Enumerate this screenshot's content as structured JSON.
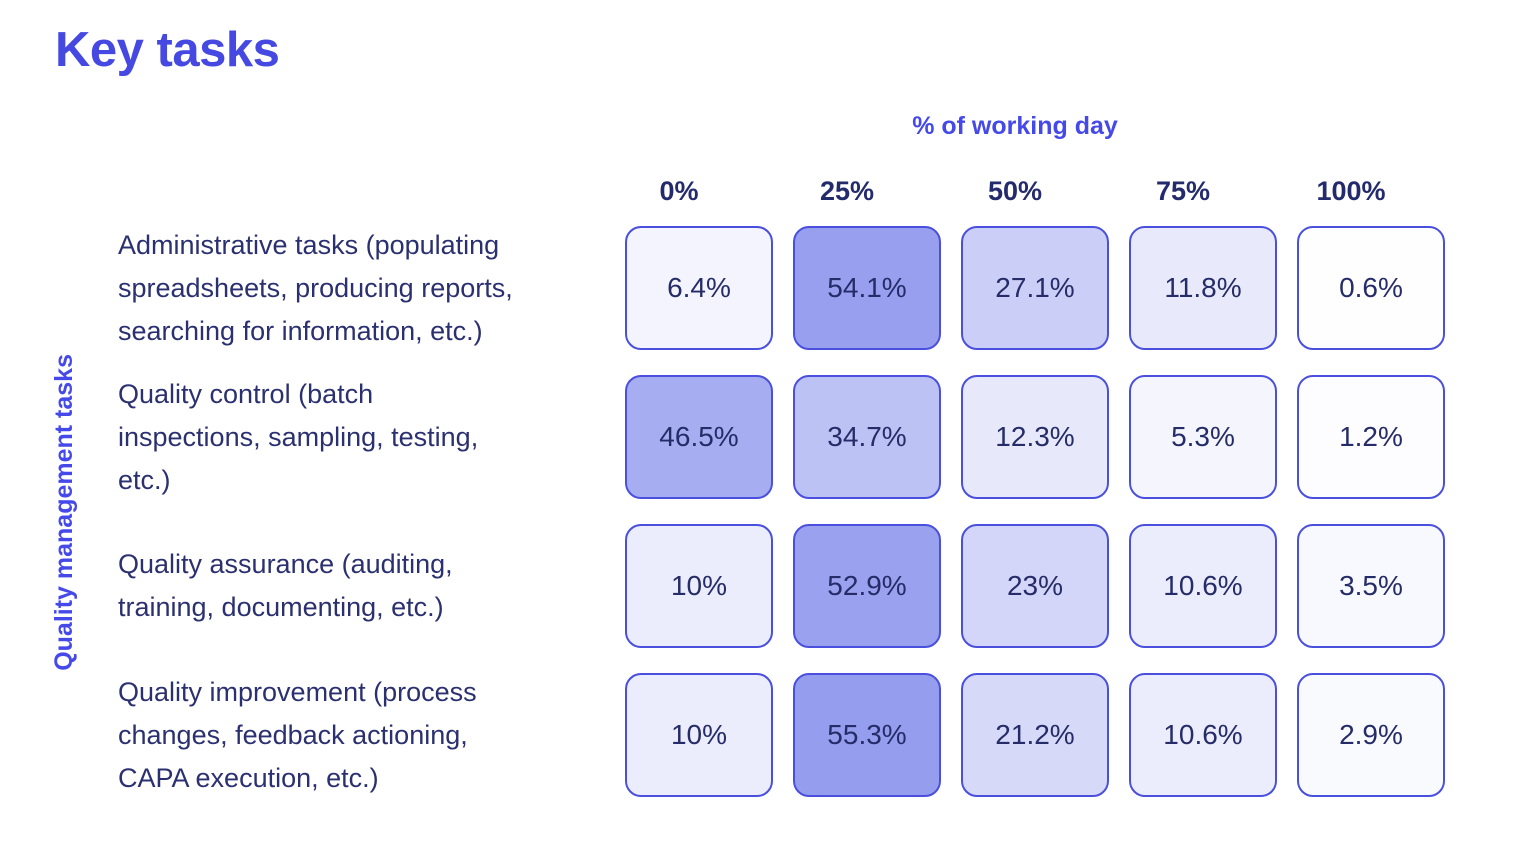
{
  "chart_data": {
    "type": "heatmap",
    "title": "Key tasks",
    "x_axis_label": "% of working day",
    "y_axis_label": "Quality management tasks",
    "columns": [
      "0%",
      "25%",
      "50%",
      "75%",
      "100%"
    ],
    "rows": [
      {
        "label_lines": [
          "Administrative tasks (populating",
          "spreadsheets, producing reports,",
          "searching for information, etc.)"
        ],
        "values": [
          6.4,
          54.1,
          27.1,
          11.8,
          0.6
        ],
        "cell_labels": [
          "6.4%",
          "54.1%",
          "27.1%",
          "11.8%",
          "0.6%"
        ]
      },
      {
        "label_lines": [
          "Quality control (batch",
          "inspections, sampling, testing,",
          "etc.)"
        ],
        "values": [
          46.5,
          34.7,
          12.3,
          5.3,
          1.2
        ],
        "cell_labels": [
          "46.5%",
          "34.7%",
          "12.3%",
          "5.3%",
          "1.2%"
        ]
      },
      {
        "label_lines": [
          "Quality assurance (auditing,",
          "training, documenting, etc.)"
        ],
        "values": [
          10,
          52.9,
          23,
          10.6,
          3.5
        ],
        "cell_labels": [
          "10%",
          "52.9%",
          "23%",
          "10.6%",
          "3.5%"
        ]
      },
      {
        "label_lines": [
          "Quality improvement (process",
          "changes, feedback actioning,",
          "CAPA execution, etc.)"
        ],
        "values": [
          10,
          55.3,
          21.2,
          10.6,
          2.9
        ],
        "cell_labels": [
          "10%",
          "55.3%",
          "21.2%",
          "10.6%",
          "2.9%"
        ]
      }
    ],
    "value_range": [
      0,
      55.3
    ],
    "layout": {
      "grid": "off",
      "legend": "none",
      "orientation": "rows = tasks, columns = share of working day"
    },
    "colors": {
      "accent_blue": "#4549e2",
      "axis_title_blue": "#4649ea",
      "column_header_navy": "#242b6d",
      "row_label_navy": "#2b3070",
      "cell_text_navy": "#252c68",
      "cell_border": "#4a50dd",
      "cell_fill_min": "#ffffff",
      "cell_fill_max": "#959dee"
    }
  }
}
